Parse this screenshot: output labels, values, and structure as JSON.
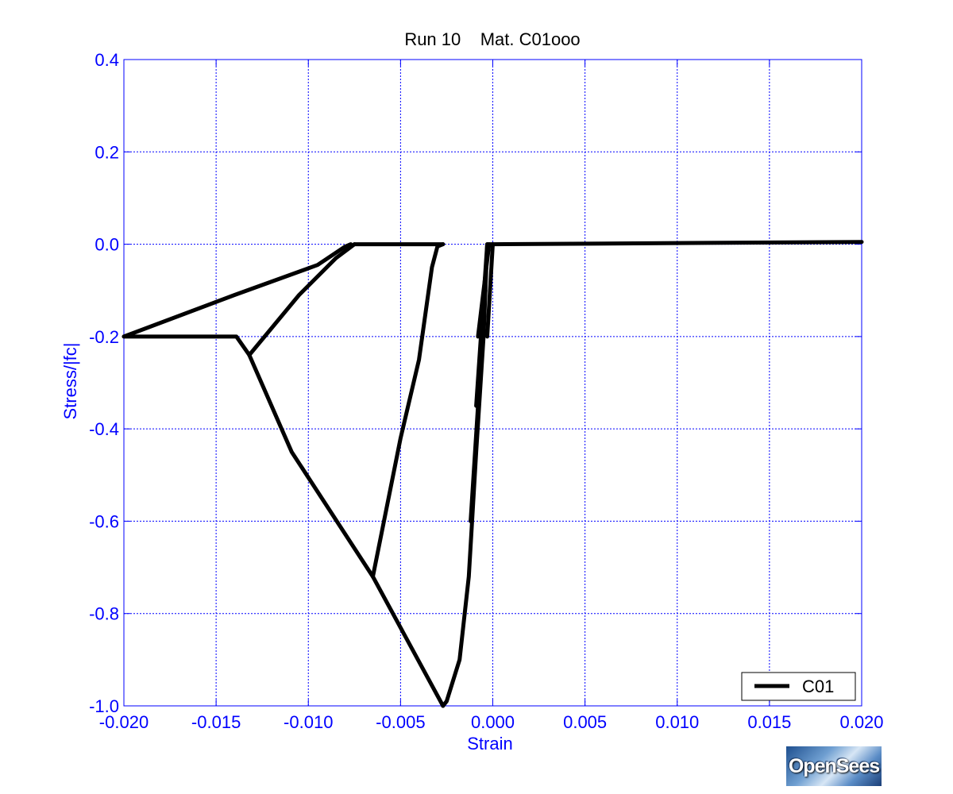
{
  "chart_data": {
    "type": "line",
    "title": "Run 10    Mat. C01ooo",
    "xlabel": "Strain",
    "ylabel": "Stress/|fc|",
    "xlim": [
      -0.02,
      0.02
    ],
    "ylim": [
      -1.0,
      0.4
    ],
    "xticks": [
      -0.02,
      -0.015,
      -0.01,
      -0.005,
      0.0,
      0.005,
      0.01,
      0.015,
      0.02
    ],
    "xtick_labels": [
      "-0.020",
      "-0.015",
      "-0.010",
      "-0.005",
      "0.000",
      "0.005",
      "0.010",
      "0.015",
      "0.020"
    ],
    "yticks": [
      0.4,
      0.2,
      0.0,
      -0.2,
      -0.4,
      -0.6,
      -0.8,
      -1.0
    ],
    "ytick_labels": [
      "0.4",
      "0.2",
      "0.0",
      "-0.2",
      "-0.4",
      "-0.6",
      "-0.8",
      "-1.0"
    ],
    "grid": true,
    "legend_position": "bottom-right",
    "series": [
      {
        "name": "C01",
        "color": "#000000",
        "segments": [
          [
            [
              0.0,
              0.0
            ],
            [
              0.02,
              0.005
            ]
          ],
          [
            [
              -0.0027,
              -1.0
            ],
            [
              -0.0025,
              -0.99
            ],
            [
              -0.0018,
              -0.9
            ],
            [
              -0.0013,
              -0.72
            ],
            [
              -0.0009,
              -0.45
            ],
            [
              -0.0005,
              -0.2
            ],
            [
              -0.0003,
              0.0
            ],
            [
              0.0,
              0.0
            ]
          ],
          [
            [
              -0.0003,
              -0.2
            ],
            [
              0.0,
              0.0
            ]
          ],
          [
            [
              -0.0008,
              -0.2
            ],
            [
              -0.0002,
              0.0
            ]
          ],
          [
            [
              -0.0009,
              -0.35
            ],
            [
              -0.0003,
              0.0
            ]
          ],
          [
            [
              -0.0012,
              -0.6
            ],
            [
              -0.0004,
              -0.1
            ]
          ],
          [
            [
              -0.0065,
              -0.72
            ],
            [
              -0.005,
              -0.42
            ],
            [
              -0.004,
              -0.25
            ],
            [
              -0.0033,
              -0.05
            ],
            [
              -0.003,
              -0.005
            ],
            [
              -0.0027,
              0.0
            ]
          ],
          [
            [
              -0.0027,
              0.0
            ],
            [
              -0.0075,
              0.0
            ]
          ],
          [
            [
              -0.0132,
              -0.24
            ],
            [
              -0.0105,
              -0.11
            ],
            [
              -0.0085,
              -0.03
            ],
            [
              -0.0075,
              0.0
            ]
          ],
          [
            [
              -0.0132,
              -0.24
            ],
            [
              -0.0109,
              -0.45
            ],
            [
              -0.0065,
              -0.72
            ],
            [
              -0.0027,
              -1.0
            ]
          ],
          [
            [
              -0.0132,
              -0.24
            ],
            [
              -0.0139,
              -0.2
            ],
            [
              -0.02,
              -0.2
            ]
          ],
          [
            [
              -0.02,
              -0.2
            ],
            [
              -0.014,
              -0.11
            ],
            [
              -0.0095,
              -0.045
            ],
            [
              -0.008,
              -0.005
            ],
            [
              -0.0077,
              0.0
            ]
          ]
        ]
      }
    ]
  },
  "logo": {
    "text": "OpenSees"
  }
}
